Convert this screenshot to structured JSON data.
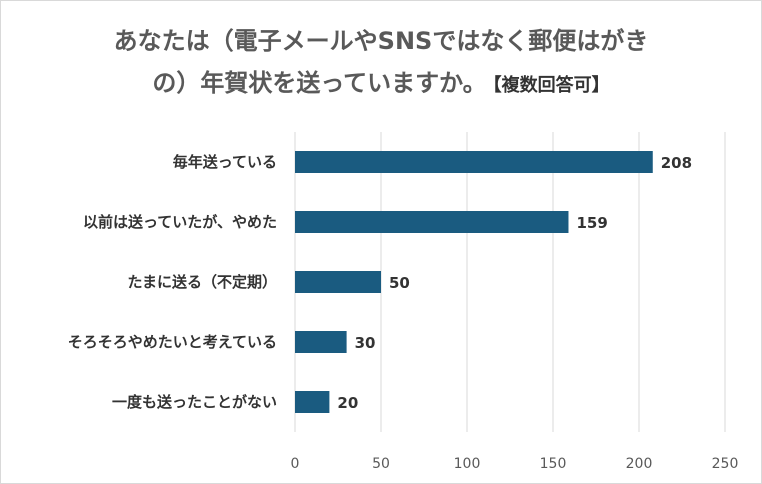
{
  "title": {
    "line1": "あなたは（電子メールやSNSではなく郵便はがき",
    "line2": "の）年賀状を送っていますか。",
    "note": "【複数回答可】"
  },
  "colors": {
    "bar": "#1a5b80",
    "grid": "#d9d9d9"
  },
  "chart_data": {
    "type": "bar",
    "orientation": "horizontal",
    "categories": [
      "毎年送っている",
      "以前は送っていたが、やめた",
      "たまに送る（不定期）",
      "そろそろやめたいと考えている",
      "一度も送ったことがない"
    ],
    "values": [
      208,
      159,
      50,
      30,
      20
    ],
    "x_ticks": [
      "0",
      "50",
      "100",
      "150",
      "200",
      "250"
    ],
    "xlim": [
      0,
      250
    ],
    "grid": "vertical"
  }
}
